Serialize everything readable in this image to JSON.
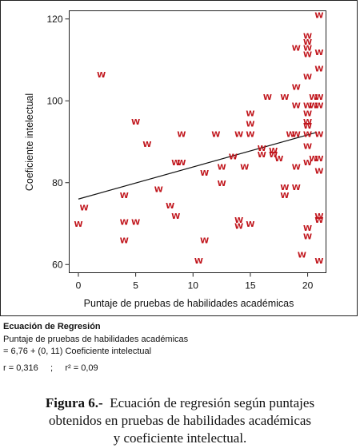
{
  "chart_data": {
    "type": "scatter",
    "marker_label": "W",
    "marker_color": "#c0141b",
    "xlabel": "Puntaje de pruebas de habilidades académicas",
    "ylabel": "Coeficiente intelectual",
    "xlim": [
      -0.8,
      21.6
    ],
    "ylim": [
      58,
      122
    ],
    "xticks": [
      0,
      5,
      10,
      15,
      20
    ],
    "yticks": [
      60,
      80,
      100,
      120
    ],
    "grid": false,
    "regression_line": {
      "x0": 0,
      "y0": 76,
      "x1": 20.8,
      "y1": 92.3
    },
    "points": [
      {
        "x": 0,
        "y": 70
      },
      {
        "x": 0.5,
        "y": 74
      },
      {
        "x": 2,
        "y": 106.5
      },
      {
        "x": 4,
        "y": 77
      },
      {
        "x": 4,
        "y": 70.5
      },
      {
        "x": 4,
        "y": 66
      },
      {
        "x": 5,
        "y": 70.5
      },
      {
        "x": 5,
        "y": 95
      },
      {
        "x": 6,
        "y": 89.5
      },
      {
        "x": 7,
        "y": 78.5
      },
      {
        "x": 8,
        "y": 74.5
      },
      {
        "x": 8.5,
        "y": 85
      },
      {
        "x": 8.5,
        "y": 72
      },
      {
        "x": 9,
        "y": 85
      },
      {
        "x": 9,
        "y": 92
      },
      {
        "x": 10.5,
        "y": 61
      },
      {
        "x": 11,
        "y": 66
      },
      {
        "x": 11,
        "y": 82.5
      },
      {
        "x": 12,
        "y": 92
      },
      {
        "x": 12.5,
        "y": 84
      },
      {
        "x": 12.5,
        "y": 80
      },
      {
        "x": 13.5,
        "y": 86.5
      },
      {
        "x": 14,
        "y": 92
      },
      {
        "x": 14,
        "y": 71
      },
      {
        "x": 14,
        "y": 69.5
      },
      {
        "x": 14.5,
        "y": 84
      },
      {
        "x": 15,
        "y": 97
      },
      {
        "x": 15,
        "y": 94.5
      },
      {
        "x": 15,
        "y": 92
      },
      {
        "x": 15,
        "y": 70
      },
      {
        "x": 16,
        "y": 88.5
      },
      {
        "x": 16,
        "y": 87
      },
      {
        "x": 16.5,
        "y": 101
      },
      {
        "x": 17,
        "y": 88
      },
      {
        "x": 17,
        "y": 87
      },
      {
        "x": 17.5,
        "y": 86
      },
      {
        "x": 18,
        "y": 101
      },
      {
        "x": 18,
        "y": 79
      },
      {
        "x": 18,
        "y": 77
      },
      {
        "x": 18.5,
        "y": 92
      },
      {
        "x": 19,
        "y": 113
      },
      {
        "x": 19,
        "y": 103.5
      },
      {
        "x": 19,
        "y": 99
      },
      {
        "x": 19,
        "y": 92
      },
      {
        "x": 19,
        "y": 84
      },
      {
        "x": 19,
        "y": 79
      },
      {
        "x": 19.5,
        "y": 62.5
      },
      {
        "x": 20,
        "y": 116
      },
      {
        "x": 20,
        "y": 114.5
      },
      {
        "x": 20,
        "y": 113
      },
      {
        "x": 20,
        "y": 111.5
      },
      {
        "x": 20,
        "y": 106
      },
      {
        "x": 20,
        "y": 99
      },
      {
        "x": 20,
        "y": 97
      },
      {
        "x": 20,
        "y": 95
      },
      {
        "x": 20,
        "y": 94
      },
      {
        "x": 20,
        "y": 92
      },
      {
        "x": 20,
        "y": 89
      },
      {
        "x": 20,
        "y": 85
      },
      {
        "x": 20,
        "y": 69
      },
      {
        "x": 20,
        "y": 67
      },
      {
        "x": 20.5,
        "y": 101
      },
      {
        "x": 20.5,
        "y": 99
      },
      {
        "x": 20.5,
        "y": 86
      },
      {
        "x": 21,
        "y": 121
      },
      {
        "x": 21,
        "y": 112
      },
      {
        "x": 21,
        "y": 108
      },
      {
        "x": 21,
        "y": 101
      },
      {
        "x": 21,
        "y": 99
      },
      {
        "x": 21,
        "y": 92
      },
      {
        "x": 21,
        "y": 86
      },
      {
        "x": 21,
        "y": 83
      },
      {
        "x": 21,
        "y": 72
      },
      {
        "x": 21,
        "y": 71
      },
      {
        "x": 21,
        "y": 61
      }
    ]
  },
  "equation": {
    "title": "Ecuación de Regresión",
    "line1": "Puntaje de pruebas de habilidades académicas",
    "line2": "= 6,76 + (0, 11) Coeficiente intelectual",
    "stats": "r = 0,316     ;     r² = 0,09"
  },
  "caption": {
    "label": "Figura 6.-",
    "line1": "  Ecuación de regresión según puntajes",
    "line2": "obtenidos en pruebas de habilidades académicas",
    "line3": "y coeficiente intelectual."
  }
}
